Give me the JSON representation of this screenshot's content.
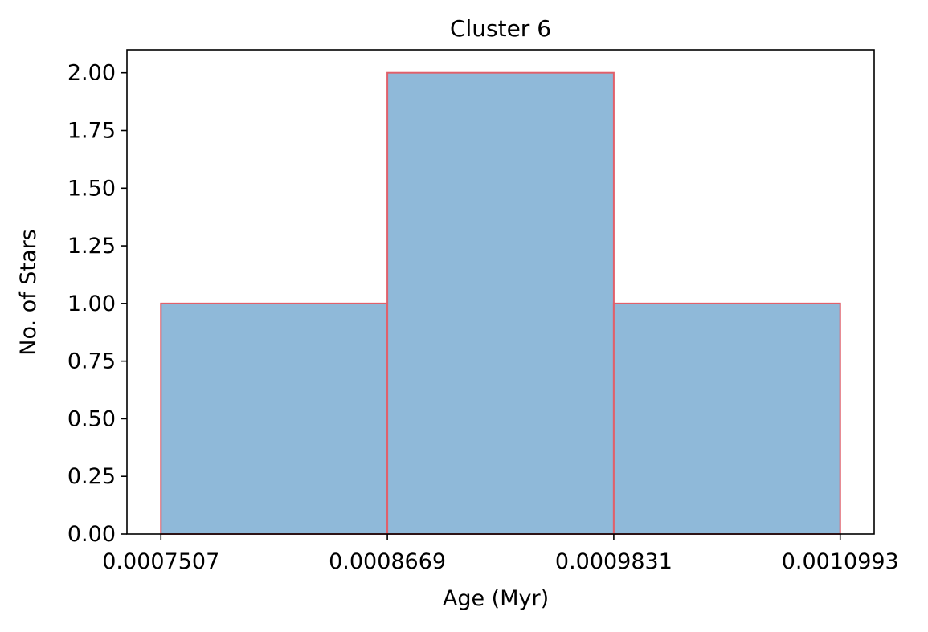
{
  "chart_data": {
    "type": "bar",
    "title": "Cluster 6",
    "xlabel": "Age (Myr)",
    "ylabel": "No. of Stars",
    "bin_edges": [
      0.0007507,
      0.0008669,
      0.0009831,
      0.0010993
    ],
    "values": [
      1,
      2,
      1
    ],
    "xticks": [
      "0.0007507",
      "0.0008669",
      "0.0009831",
      "0.0010993"
    ],
    "yticks": [
      "0.00",
      "0.25",
      "0.50",
      "0.75",
      "1.00",
      "1.25",
      "1.50",
      "1.75",
      "2.00"
    ],
    "ylim": [
      0,
      2.1
    ],
    "grid": false,
    "colors": {
      "bar_fill": "#8fb9d9",
      "bar_edge": "#e0606b",
      "axis": "#000000"
    }
  }
}
